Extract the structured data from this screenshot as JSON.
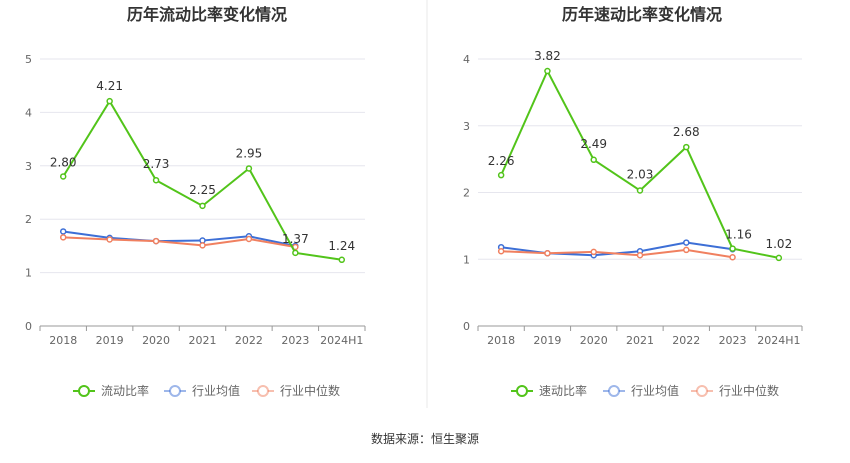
{
  "source": "数据来源：恒生聚源",
  "chart_data": [
    {
      "type": "line",
      "title": "历年流动比率变化情况",
      "categories": [
        "2018",
        "2019",
        "2020",
        "2021",
        "2022",
        "2023",
        "2024H1"
      ],
      "ylim": [
        0,
        5
      ],
      "yticks": [
        0,
        1,
        2,
        3,
        4,
        5
      ],
      "grid": true,
      "legend_position": "bottom",
      "series": [
        {
          "name": "流动比率",
          "color": "#52c41a",
          "values": [
            2.8,
            4.21,
            2.73,
            2.25,
            2.95,
            1.37,
            1.24
          ],
          "labels": [
            "2.80",
            "4.21",
            "2.73",
            "2.25",
            "2.95",
            "1.37",
            "1.24"
          ]
        },
        {
          "name": "行业均值",
          "color": "#3d6fd6",
          "values": [
            1.77,
            1.65,
            1.59,
            1.6,
            1.68,
            1.5,
            null
          ]
        },
        {
          "name": "行业中位数",
          "color": "#f08060",
          "values": [
            1.66,
            1.62,
            1.59,
            1.51,
            1.63,
            1.48,
            null
          ]
        }
      ]
    },
    {
      "type": "line",
      "title": "历年速动比率变化情况",
      "categories": [
        "2018",
        "2019",
        "2020",
        "2021",
        "2022",
        "2023",
        "2024H1"
      ],
      "ylim": [
        0,
        4
      ],
      "yticks": [
        0,
        1,
        2,
        3,
        4
      ],
      "grid": true,
      "legend_position": "bottom",
      "series": [
        {
          "name": "速动比率",
          "color": "#52c41a",
          "values": [
            2.26,
            3.82,
            2.49,
            2.03,
            2.68,
            1.16,
            1.02
          ],
          "labels": [
            "2.26",
            "3.82",
            "2.49",
            "2.03",
            "2.68",
            "1.16",
            "1.02"
          ]
        },
        {
          "name": "行业均值",
          "color": "#3d6fd6",
          "values": [
            1.18,
            1.09,
            1.06,
            1.12,
            1.25,
            1.15,
            null
          ]
        },
        {
          "name": "行业中位数",
          "color": "#f08060",
          "values": [
            1.12,
            1.09,
            1.11,
            1.06,
            1.14,
            1.03,
            null
          ]
        }
      ]
    }
  ]
}
